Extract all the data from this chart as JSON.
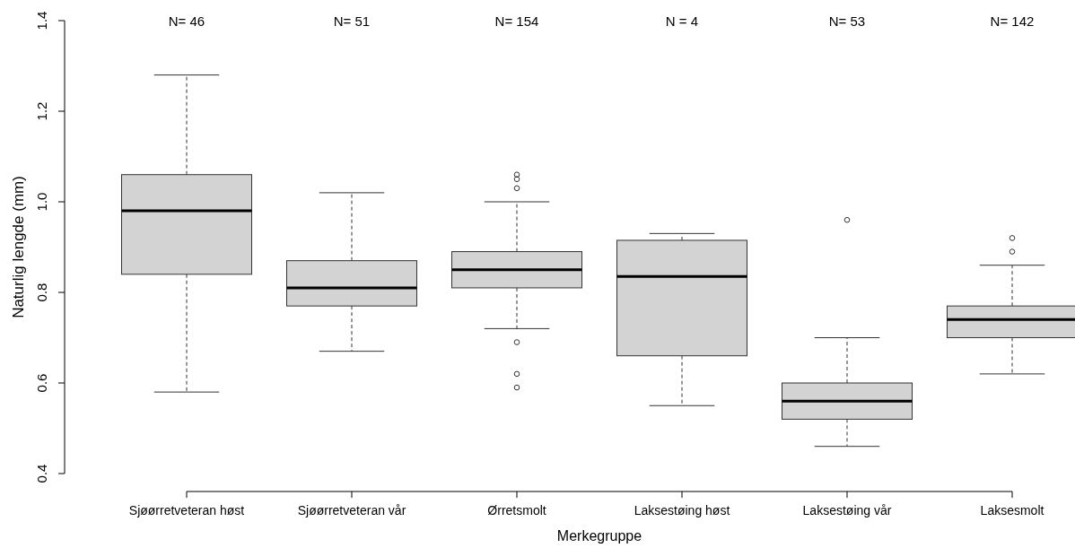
{
  "chart_data": {
    "type": "box",
    "xlabel": "Merkegruppe",
    "ylabel": "Naturlig lengde (mm)",
    "categories": [
      "Sjøørretveteran høst",
      "Sjøørretveteran vår",
      "Ørretsmolt",
      "Laksestøing høst",
      "Laksestøing vår",
      "Laksesmolt"
    ],
    "boxes": [
      {
        "low": 0.58,
        "q1": 0.84,
        "median": 0.98,
        "q3": 1.06,
        "high": 1.28
      },
      {
        "low": 0.67,
        "q1": 0.77,
        "median": 0.81,
        "q3": 0.87,
        "high": 1.02
      },
      {
        "low": 0.72,
        "q1": 0.81,
        "median": 0.85,
        "q3": 0.89,
        "high": 1.0,
        "outliers": [
          1.06,
          1.05,
          1.03,
          0.69,
          0.62,
          0.59
        ]
      },
      {
        "low": 0.55,
        "q1": 0.66,
        "median": 0.835,
        "q3": 0.915,
        "high": 0.93
      },
      {
        "low": 0.46,
        "q1": 0.52,
        "median": 0.56,
        "q3": 0.6,
        "high": 0.7,
        "outliers": [
          0.96
        ]
      },
      {
        "low": 0.62,
        "q1": 0.7,
        "median": 0.74,
        "q3": 0.77,
        "high": 0.86,
        "outliers": [
          0.92,
          0.89
        ]
      }
    ],
    "color": "#d3d3d3",
    "ylim": [
      0.4,
      1.4
    ],
    "yticks": [
      {
        "value": 0.4,
        "label": "0.4"
      },
      {
        "value": 0.6,
        "label": "0.6"
      },
      {
        "value": 0.8,
        "label": "0.8"
      },
      {
        "value": 1.0,
        "label": "1.0"
      },
      {
        "value": 1.2,
        "label": "1.2"
      },
      {
        "value": 1.4,
        "label": "1.4"
      }
    ],
    "grid": false,
    "annotations": [
      "N= 46",
      "N= 51",
      "N= 154",
      "N = 4",
      "N= 53",
      "N= 142"
    ]
  }
}
